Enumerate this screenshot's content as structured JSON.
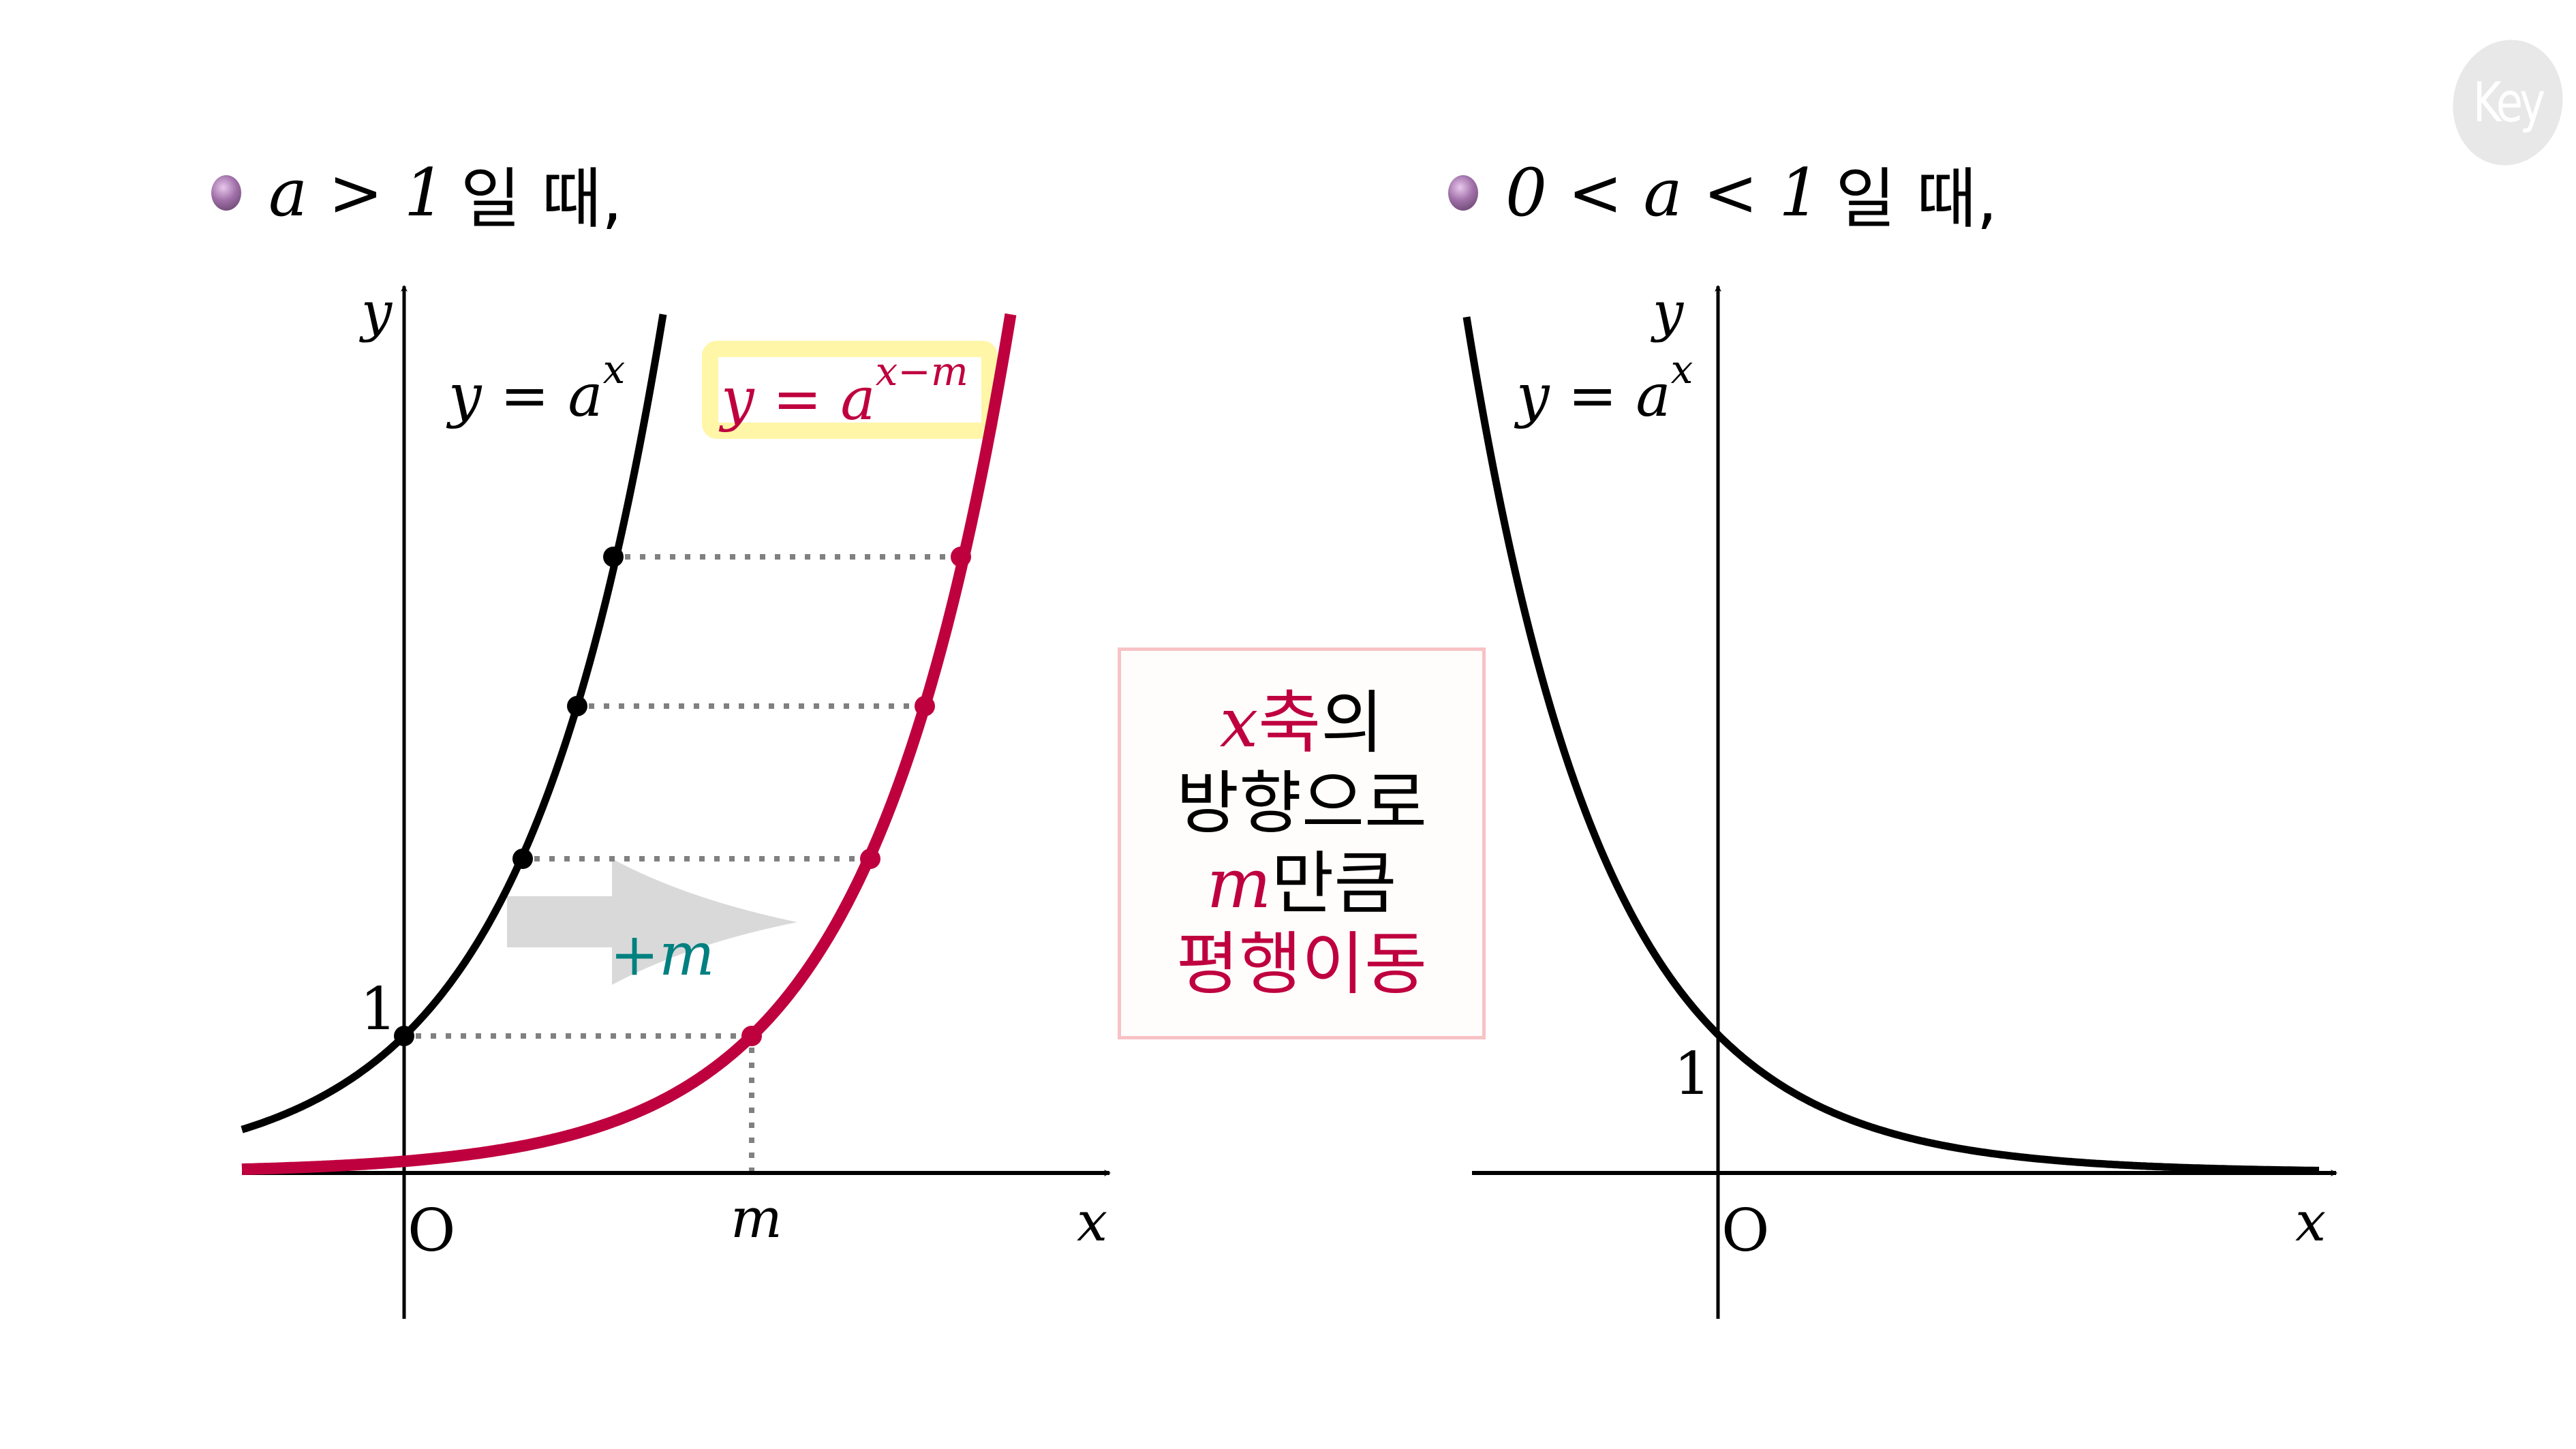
{
  "logo": {
    "text": "Key",
    "color": "#e8e8e8"
  },
  "colors": {
    "original_curve": "#000000",
    "shifted_curve": "#bf003f",
    "guide_dots": "#808080",
    "shift_arrow": "#d9d9d9",
    "shift_label": "#008080",
    "highlight_box": "#fff6a8",
    "callout_border": "#f8c2c6"
  },
  "left_panel": {
    "heading": {
      "condition": "a > 1",
      "suffix": "일 때,"
    },
    "axis_labels": {
      "x": "x",
      "y": "y",
      "origin": "O",
      "one": "1",
      "m": "m"
    },
    "curve_label": {
      "base": "y = a",
      "exp": "x"
    },
    "shifted_label": {
      "base": "y = a",
      "exp": "x−m"
    },
    "shift_arrow_label": "+m"
  },
  "callout": {
    "lines": [
      [
        {
          "text": "x",
          "style": "math-accent"
        },
        {
          "text": "축",
          "style": "accent"
        },
        {
          "text": "의",
          "style": "plain"
        }
      ],
      [
        {
          "text": "방향으로",
          "style": "plain"
        }
      ],
      [
        {
          "text": "m",
          "style": "math-accent"
        },
        {
          "text": "만큼",
          "style": "plain"
        }
      ],
      [
        {
          "text": "평행이동",
          "style": "accent"
        }
      ]
    ],
    "line1_var": "x",
    "line1_a": "축",
    "line1_b": "의",
    "line2": "방향으로",
    "line3_var": "m",
    "line3": "만큼",
    "line4": "평행이동"
  },
  "right_panel": {
    "heading": {
      "condition": "0 < a < 1",
      "suffix": "일 때,"
    },
    "axis_labels": {
      "x": "x",
      "y": "y",
      "origin": "O",
      "one": "1"
    },
    "curve_label": {
      "base": "y = a",
      "exp": "x"
    }
  },
  "chart_data": [
    {
      "type": "line",
      "title": "a > 1 일 때,",
      "xlabel": "x",
      "ylabel": "y",
      "grid": false,
      "series": [
        {
          "name": "y = a^x",
          "color": "#000000",
          "kind": "exponential_growth",
          "y_intercept": 1,
          "marked_points_y": [
            1,
            2.29,
            3.41,
            4.5
          ]
        },
        {
          "name": "y = a^(x-m)",
          "color": "#bf003f",
          "kind": "exponential_growth_shifted",
          "shift_x": "m",
          "marked_points_y": [
            1,
            2.29,
            3.41,
            4.5
          ]
        }
      ],
      "annotations": [
        "+m",
        "x축의 방향으로 m만큼 평행이동",
        "O",
        "1",
        "m"
      ]
    },
    {
      "type": "line",
      "title": "0 < a < 1 일 때,",
      "xlabel": "x",
      "ylabel": "y",
      "grid": false,
      "series": [
        {
          "name": "y = a^x",
          "color": "#000000",
          "kind": "exponential_decay",
          "y_intercept": 1
        }
      ],
      "annotations": [
        "O",
        "1"
      ]
    }
  ]
}
